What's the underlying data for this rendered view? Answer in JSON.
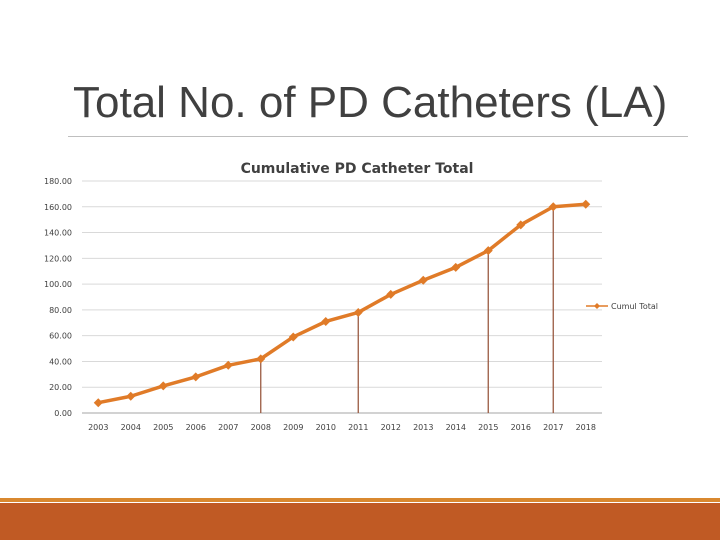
{
  "slide": {
    "title": "Total No. of PD Catheters (LA)"
  },
  "colors": {
    "series": "#e07b28",
    "drop_lines": "#9a5a40",
    "gridlines": "#d9d9d9",
    "footer_bar": "#c05a24",
    "footer_thin": "#d9882f"
  },
  "chart_data": {
    "type": "line",
    "title": "Cumulative PD Catheter Total",
    "xlabel": "",
    "ylabel": "",
    "categories": [
      "2003",
      "2004",
      "2005",
      "2006",
      "2007",
      "2008",
      "2009",
      "2010",
      "2011",
      "2012",
      "2013",
      "2014",
      "2015",
      "2016",
      "2017",
      "2018"
    ],
    "series": [
      {
        "name": "Cumul Total",
        "values": [
          8,
          13,
          21,
          28,
          37,
          42,
          59,
          71,
          78,
          92,
          103,
          113,
          126,
          146,
          160,
          162
        ]
      }
    ],
    "y_ticks": [
      "0.00",
      "20.00",
      "40.00",
      "60.00",
      "80.00",
      "100.00",
      "120.00",
      "140.00",
      "160.00",
      "180.00"
    ],
    "ylim": [
      0,
      180
    ],
    "grid": true,
    "legend_position": "right",
    "drop_lines_at": [
      "2008",
      "2011",
      "2015",
      "2017"
    ],
    "marker": "diamond"
  }
}
